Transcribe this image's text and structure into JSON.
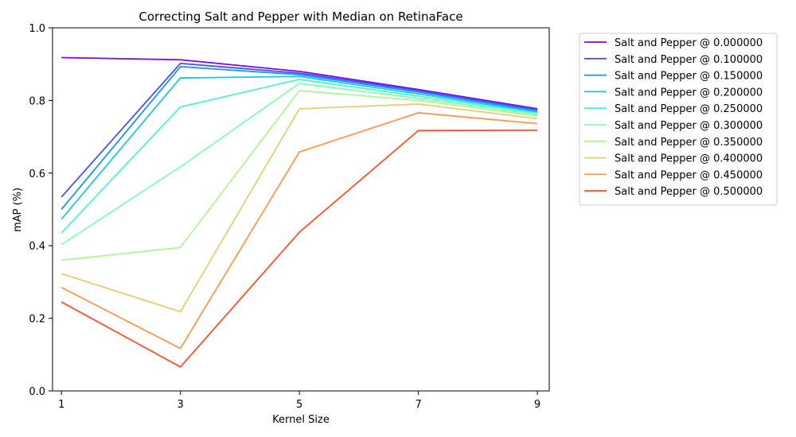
{
  "chart_data": {
    "type": "line",
    "title": "Correcting Salt and Pepper with Median on RetinaFace",
    "xlabel": "Kernel Size",
    "ylabel": "mAP (%)",
    "x": [
      1,
      3,
      5,
      7,
      9
    ],
    "xticks": [
      "1",
      "3",
      "5",
      "7",
      "9"
    ],
    "yticks": [
      "0.0",
      "0.2",
      "0.4",
      "0.6",
      "0.8",
      "1.0"
    ],
    "xlim": [
      0.85,
      9.2
    ],
    "ylim": [
      0.0,
      1.0
    ],
    "grid": false,
    "legend_position": "outside-top-right",
    "series": [
      {
        "name": "Salt and Pepper @ 0.000000",
        "color": "#8000ff",
        "values": [
          0.918,
          0.912,
          0.88,
          0.83,
          0.777
        ]
      },
      {
        "name": "Salt and Pepper @ 0.100000",
        "color": "#4a4cfb",
        "values": [
          0.534,
          0.902,
          0.875,
          0.827,
          0.774
        ]
      },
      {
        "name": "Salt and Pepper @ 0.150000",
        "color": "#1996f3",
        "values": [
          0.5,
          0.893,
          0.871,
          0.823,
          0.771
        ]
      },
      {
        "name": "Salt and Pepper @ 0.200000",
        "color": "#1ac7e6",
        "values": [
          0.473,
          0.862,
          0.866,
          0.818,
          0.768
        ]
      },
      {
        "name": "Salt and Pepper @ 0.250000",
        "color": "#4df2d1",
        "values": [
          0.435,
          0.782,
          0.858,
          0.812,
          0.765
        ]
      },
      {
        "name": "Salt and Pepper @ 0.300000",
        "color": "#80ffb4",
        "values": [
          0.403,
          0.617,
          0.847,
          0.806,
          0.761
        ]
      },
      {
        "name": "Salt and Pepper @ 0.350000",
        "color": "#b2f396",
        "values": [
          0.36,
          0.395,
          0.827,
          0.8,
          0.757
        ]
      },
      {
        "name": "Salt and Pepper @ 0.400000",
        "color": "#e6cd73",
        "values": [
          0.323,
          0.218,
          0.777,
          0.79,
          0.75
        ]
      },
      {
        "name": "Salt and Pepper @ 0.450000",
        "color": "#ff964f",
        "values": [
          0.285,
          0.117,
          0.658,
          0.766,
          0.736
        ]
      },
      {
        "name": "Salt and Pepper @ 0.500000",
        "color": "#ff4f28",
        "values": [
          0.245,
          0.066,
          0.437,
          0.717,
          0.718
        ]
      }
    ]
  }
}
